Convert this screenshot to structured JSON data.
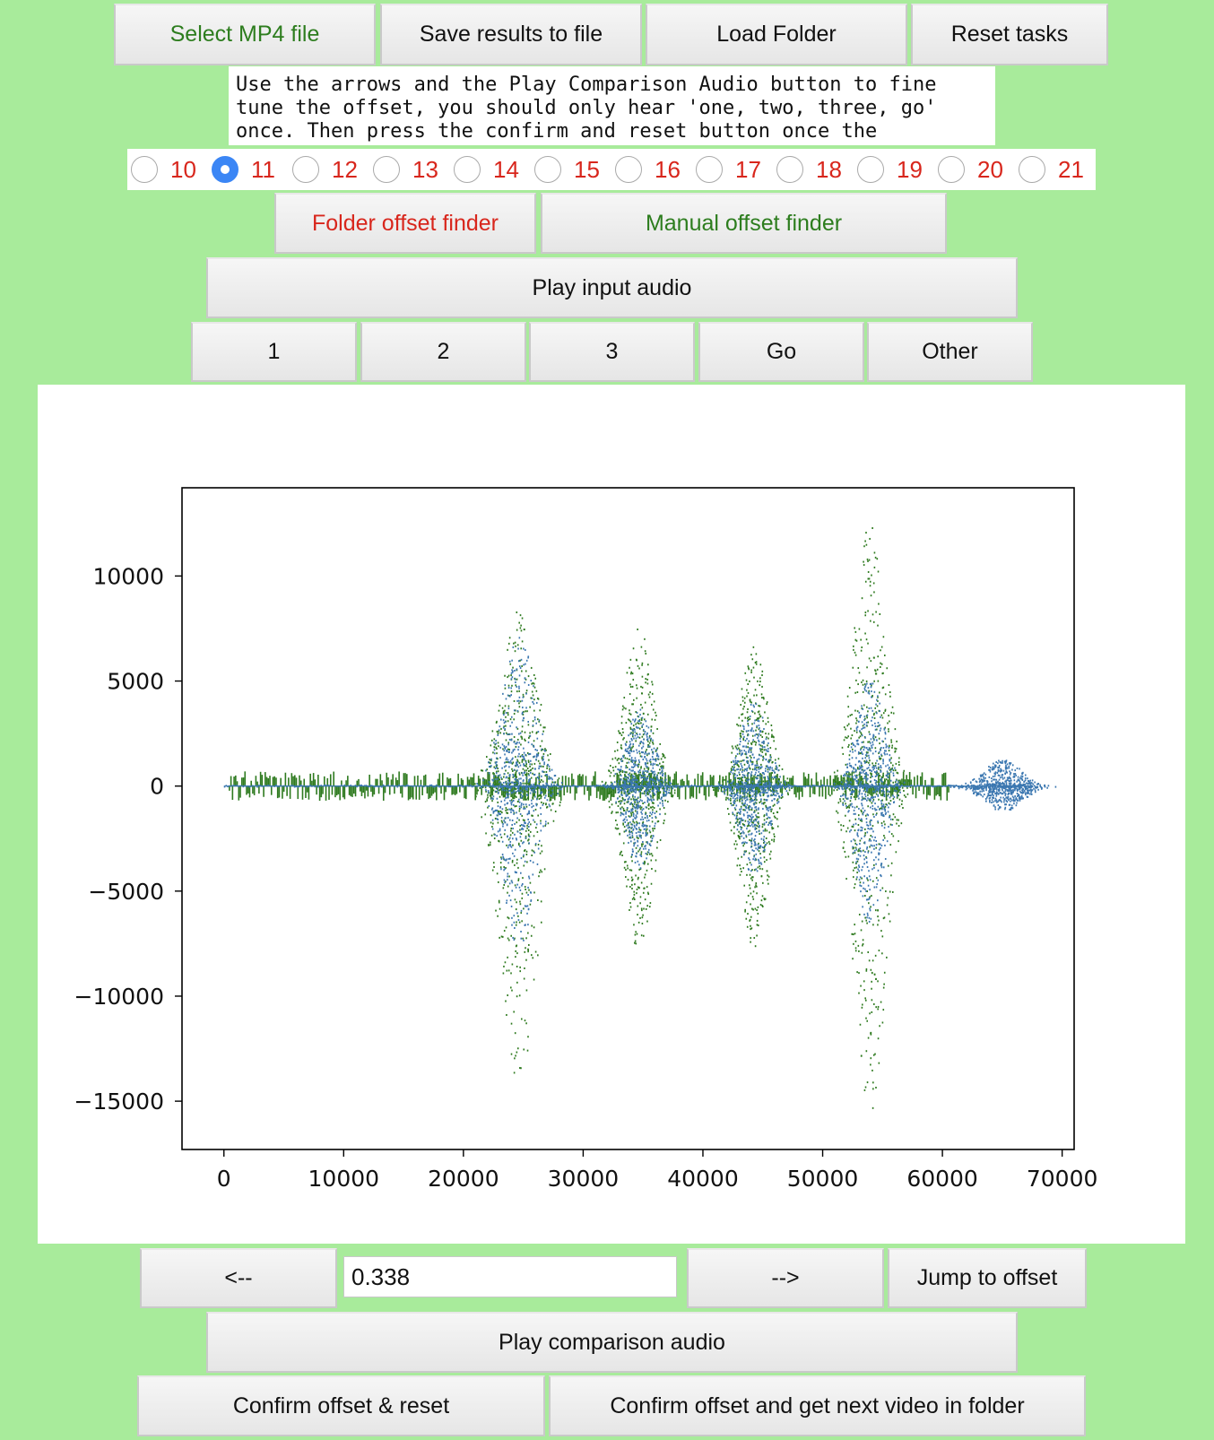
{
  "toolbar": {
    "select_mp4": "Select MP4 file",
    "save_results": "Save results to file",
    "load_folder": "Load Folder",
    "reset_tasks": "Reset tasks"
  },
  "instructions": "Use the arrows and the Play Comparison Audio button to fine tune the offset, you should only hear 'one, two, three, go' once. Then press the confirm and reset button once the",
  "radio_options": [
    {
      "label": "10",
      "checked": false
    },
    {
      "label": "11",
      "checked": true
    },
    {
      "label": "12",
      "checked": false
    },
    {
      "label": "13",
      "checked": false
    },
    {
      "label": "14",
      "checked": false
    },
    {
      "label": "15",
      "checked": false
    },
    {
      "label": "16",
      "checked": false
    },
    {
      "label": "17",
      "checked": false
    },
    {
      "label": "18",
      "checked": false
    },
    {
      "label": "19",
      "checked": false
    },
    {
      "label": "20",
      "checked": false
    },
    {
      "label": "21",
      "checked": false
    }
  ],
  "finders": {
    "folder": "Folder offset finder",
    "manual": "Manual offset finder"
  },
  "play_input": "Play input audio",
  "count_buttons": [
    "1",
    "2",
    "3",
    "Go",
    "Other"
  ],
  "colors": {
    "green_text": "#2d7d1e",
    "red_text": "#d8261c",
    "green_series": "#2e7a1f",
    "blue_series": "#3b77b0",
    "background": "#a8eb9b"
  },
  "chart_data": {
    "type": "scatter",
    "xlim": [
      -3500,
      71000
    ],
    "ylim": [
      -17300,
      14200
    ],
    "xticks": [
      0,
      10000,
      20000,
      30000,
      40000,
      50000,
      60000,
      70000
    ],
    "xtick_labels": [
      "0",
      "10000",
      "20000",
      "30000",
      "40000",
      "50000",
      "60000",
      "70000"
    ],
    "yticks": [
      10000,
      5000,
      0,
      -5000,
      -10000,
      -15000
    ],
    "ytick_labels": [
      "10000",
      "5000",
      "0",
      "−5000",
      "−10000",
      "−15000"
    ],
    "grid": false,
    "series": [
      {
        "color": "#2e7a1f",
        "x_range": [
          400,
          60500
        ],
        "noise_amplitude": 700,
        "bursts": [
          {
            "center": 24600,
            "width": 4400,
            "pos_peak": 8500,
            "neg_peak": -14300
          },
          {
            "center": 34600,
            "width": 3600,
            "pos_peak": 7800,
            "neg_peak": -7800
          },
          {
            "center": 44200,
            "width": 3600,
            "pos_peak": 6800,
            "neg_peak": -7700
          },
          {
            "center": 53900,
            "width": 3800,
            "pos_peak": 12800,
            "neg_peak": -15900
          }
        ]
      },
      {
        "color": "#3b77b0",
        "x_range": [
          0,
          67300
        ],
        "noise_amplitude": 80,
        "bursts": [
          {
            "center": 24600,
            "width": 4000,
            "pos_peak": 7500,
            "neg_peak": -8000
          },
          {
            "center": 34700,
            "width": 3400,
            "pos_peak": 3700,
            "neg_peak": -3900
          },
          {
            "center": 44200,
            "width": 3400,
            "pos_peak": 4100,
            "neg_peak": -4300
          },
          {
            "center": 53900,
            "width": 3400,
            "pos_peak": 5200,
            "neg_peak": -6800
          },
          {
            "center": 65000,
            "width": 4600,
            "pos_peak": 1300,
            "neg_peak": -1200
          }
        ]
      }
    ]
  },
  "nav": {
    "back": "<--",
    "forward": "-->",
    "offset_value": "0.338",
    "jump": "Jump to offset"
  },
  "play_comparison": "Play comparison audio",
  "confirm": {
    "reset": "Confirm offset & reset",
    "next": "Confirm offset and get next video in folder"
  }
}
